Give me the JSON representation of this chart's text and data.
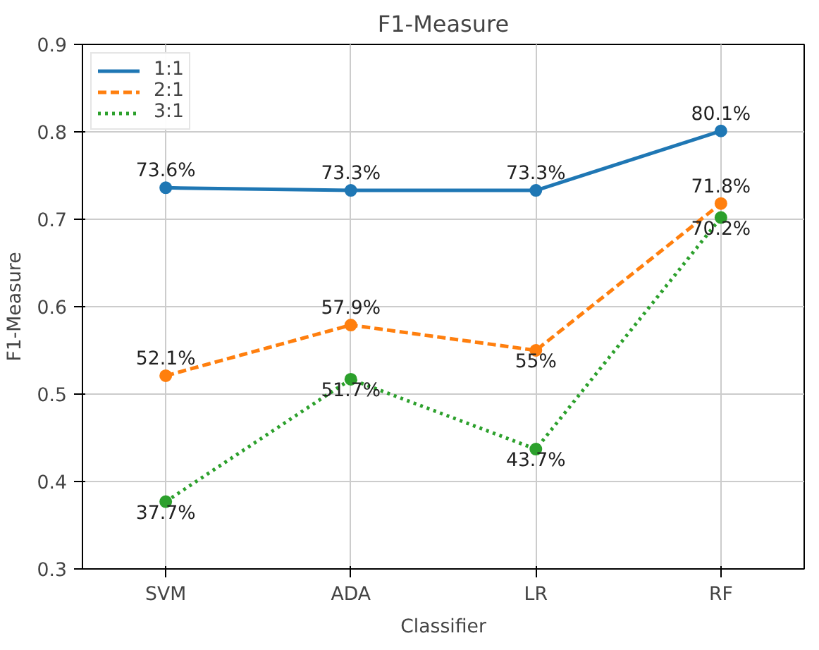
{
  "chart_data": {
    "type": "line",
    "title": "F1-Measure",
    "xlabel": "Classifier",
    "ylabel": "F1-Measure",
    "categories": [
      "SVM",
      "ADA",
      "LR",
      "RF"
    ],
    "series": [
      {
        "name": "1:1",
        "color": "#1f77b4",
        "line_style": "solid",
        "values": [
          0.736,
          0.733,
          0.733,
          0.801
        ],
        "value_labels": [
          "73.6%",
          "73.3%",
          "73.3%",
          "80.1%"
        ]
      },
      {
        "name": "2:1",
        "color": "#ff7f0e",
        "line_style": "dashed",
        "values": [
          0.521,
          0.579,
          0.55,
          0.718
        ],
        "value_labels": [
          "52.1%",
          "57.9%",
          "55%",
          "71.8%"
        ]
      },
      {
        "name": "3:1",
        "color": "#2ca02c",
        "line_style": "dotted",
        "values": [
          0.377,
          0.517,
          0.437,
          0.702
        ],
        "value_labels": [
          "37.7%",
          "51.7%",
          "43.7%",
          "70.2%"
        ]
      }
    ],
    "ylim": [
      0.3,
      0.9
    ],
    "yticks": [
      0.3,
      0.4,
      0.5,
      0.6,
      0.7,
      0.8,
      0.9
    ],
    "grid": true,
    "legend": "top left",
    "marker": "circle"
  }
}
